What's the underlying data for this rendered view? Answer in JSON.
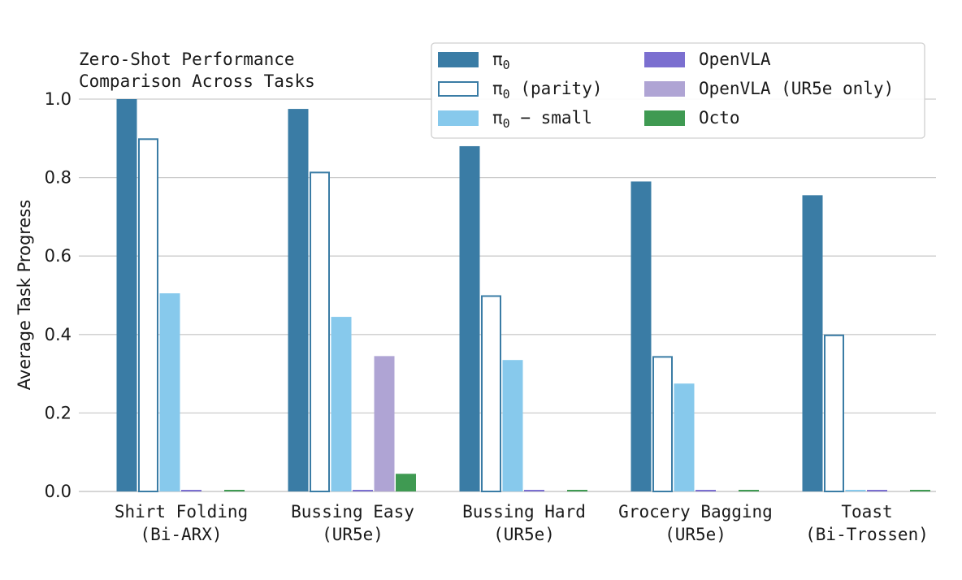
{
  "chart_data": {
    "type": "bar",
    "title_lines": [
      "Zero-Shot Performance",
      "Comparison Across Tasks"
    ],
    "xlabel": "",
    "ylabel": "Average Task Progress",
    "ylim": [
      0,
      1.0
    ],
    "yticks": [
      0.0,
      0.2,
      0.4,
      0.6,
      0.8,
      1.0
    ],
    "ytick_labels": [
      "0.0",
      "0.2",
      "0.4",
      "0.6",
      "0.8",
      "1.0"
    ],
    "grid": "horizontal",
    "legend_position": "top-right",
    "categories": [
      {
        "line1": "Shirt Folding",
        "line2": "(Bi-ARX)"
      },
      {
        "line1": "Bussing Easy",
        "line2": "(UR5e)"
      },
      {
        "line1": "Bussing Hard",
        "line2": "(UR5e)"
      },
      {
        "line1": "Grocery Bagging",
        "line2": "(UR5e)"
      },
      {
        "line1": "Toast",
        "line2": "(Bi-Trossen)"
      }
    ],
    "series": [
      {
        "base": "π",
        "sub": "0",
        "suffix": "",
        "style": "filled",
        "fill": "#3a7ca5",
        "stroke": "#3a7ca5",
        "values": [
          1.0,
          0.975,
          0.88,
          0.79,
          0.755
        ]
      },
      {
        "base": "π",
        "sub": "0",
        "suffix": " (parity)",
        "style": "outline",
        "fill": "#ffffff",
        "stroke": "#3a7ca5",
        "values": [
          0.9,
          0.815,
          0.5,
          0.345,
          0.4
        ]
      },
      {
        "base": "π",
        "sub": "0",
        "suffix": " − small",
        "style": "filled",
        "fill": "#87c9ec",
        "stroke": "#87c9ec",
        "values": [
          0.505,
          0.445,
          0.335,
          0.275,
          0.003
        ]
      },
      {
        "base": "OpenVLA",
        "sub": "",
        "suffix": "",
        "style": "filled",
        "fill": "#7b6fd0",
        "stroke": "#7b6fd0",
        "values": [
          0.003,
          0.003,
          0.003,
          0.003,
          0.003
        ]
      },
      {
        "base": "OpenVLA (UR5e only)",
        "sub": "",
        "suffix": "",
        "style": "filled",
        "fill": "#afa4d4",
        "stroke": "#afa4d4",
        "values": [
          null,
          0.345,
          null,
          null,
          null
        ]
      },
      {
        "base": "Octo",
        "sub": "",
        "suffix": "",
        "style": "filled",
        "fill": "#3f9a52",
        "stroke": "#3f9a52",
        "values": [
          0.003,
          0.045,
          0.003,
          0.003,
          0.003
        ]
      }
    ]
  }
}
